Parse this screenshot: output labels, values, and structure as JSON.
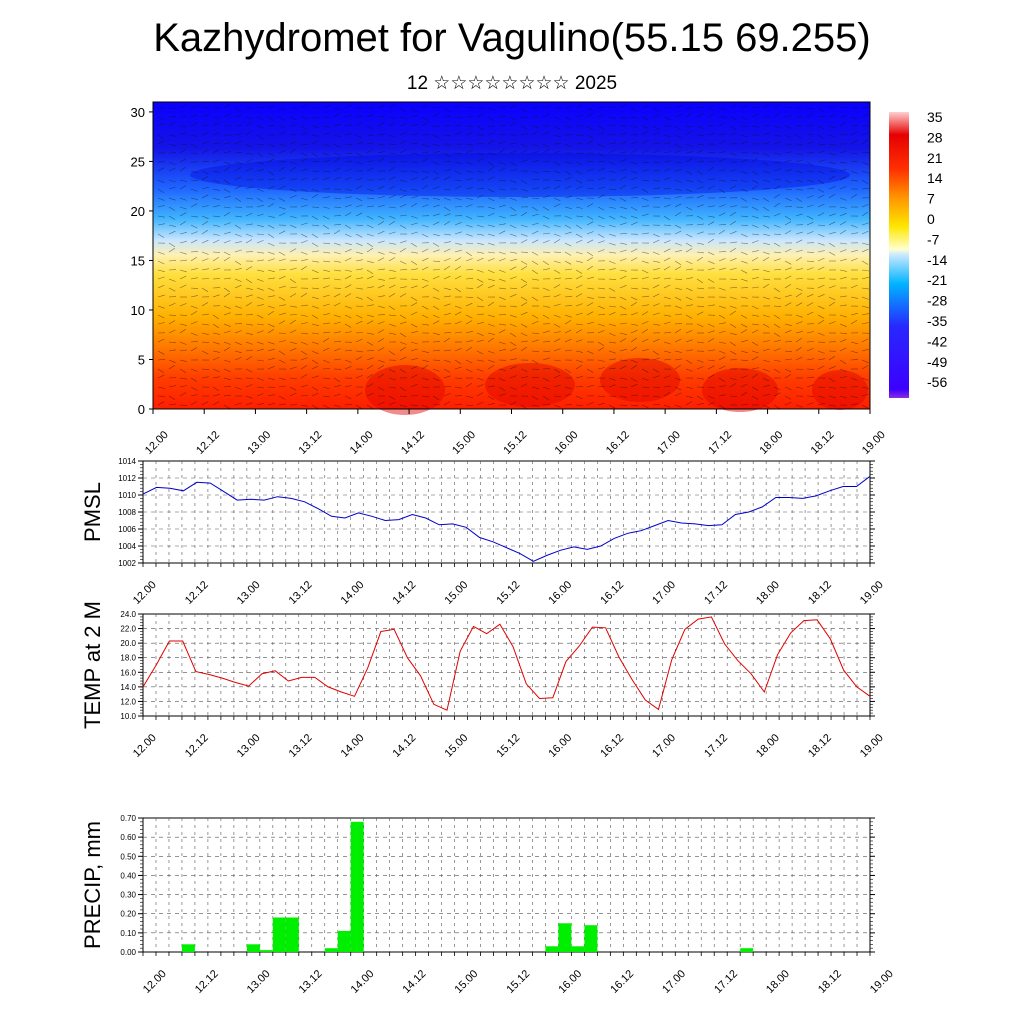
{
  "header": {
    "title": "Kazhydromet for Vagulino(55.15 69.255)",
    "subtitle": "12 ☆☆☆☆☆☆☆☆ 2025"
  },
  "colors": {
    "pmsl_line": "#0000cc",
    "temp_line": "#e00000",
    "precip_bar": "#00ee00"
  },
  "chart_data": [
    {
      "type": "heatmap",
      "title": "",
      "x_tick_labels": [
        "12.00",
        "12.12",
        "13.00",
        "13.12",
        "14.00",
        "14.12",
        "15.00",
        "15.12",
        "16.00",
        "16.12",
        "17.00",
        "17.12",
        "18.00",
        "18.12",
        "19.00"
      ],
      "y_ticks": [
        0,
        5,
        10,
        15,
        20,
        25,
        30
      ],
      "ylim": [
        0,
        31
      ],
      "colorbar_labels": [
        "35",
        "28",
        "21",
        "14",
        "7",
        "0",
        "-7",
        "-14",
        "-21",
        "-28",
        "-35",
        "-42",
        "-49",
        "-56"
      ],
      "colorbar_range": [
        -60,
        38
      ],
      "note_overlay": "wind barbs"
    },
    {
      "type": "line",
      "ylabel": "PMSL",
      "y_ticks": [
        "1002",
        "1004",
        "1006",
        "1008",
        "1010",
        "1012",
        "1014"
      ],
      "ylim": [
        1002,
        1014
      ],
      "x_tick_labels": [
        "12.00",
        "12.12",
        "13.00",
        "13.12",
        "14.00",
        "14.12",
        "15.00",
        "15.12",
        "16.00",
        "16.12",
        "17.00",
        "17.12",
        "18.00",
        "18.12",
        "19.00"
      ],
      "series": [
        {
          "values": [
            1010.1,
            1010.9,
            1010.8,
            1010.5,
            1011.5,
            1011.4,
            1010.4,
            1009.4,
            1009.5,
            1009.4,
            1009.8,
            1009.6,
            1009.2,
            1008.4,
            1007.5,
            1007.3,
            1007.9,
            1007.5,
            1007.0,
            1007.1,
            1007.7,
            1007.3,
            1006.5,
            1006.6,
            1006.2,
            1005.0,
            1004.5,
            1003.8,
            1003.1,
            1002.2,
            1002.9,
            1003.5,
            1003.9,
            1003.6,
            1004.0,
            1004.9,
            1005.5,
            1005.8,
            1006.4,
            1007.0,
            1006.7,
            1006.6,
            1006.4,
            1006.5,
            1007.7,
            1008.0,
            1008.6,
            1009.7,
            1009.7,
            1009.6,
            1009.9,
            1010.5,
            1011.0,
            1011.0,
            1012.2
          ]
        }
      ]
    },
    {
      "type": "line",
      "ylabel": "TEMP at 2 M",
      "y_ticks": [
        "10.0",
        "12.0",
        "14.0",
        "16.0",
        "18.0",
        "20.0",
        "22.0",
        "24.0"
      ],
      "ylim": [
        10,
        24
      ],
      "x_tick_labels": [
        "12.00",
        "12.12",
        "13.00",
        "13.12",
        "14.00",
        "14.12",
        "15.00",
        "15.12",
        "16.00",
        "16.12",
        "17.00",
        "17.12",
        "18.00",
        "18.12",
        "19.00"
      ],
      "series": [
        {
          "values": [
            14.0,
            17.0,
            20.3,
            20.3,
            16.1,
            15.7,
            15.2,
            14.6,
            14.1,
            15.8,
            16.2,
            14.8,
            15.3,
            15.3,
            14.0,
            13.3,
            12.7,
            16.6,
            21.6,
            21.9,
            18.0,
            15.5,
            11.6,
            10.8,
            18.9,
            22.3,
            21.3,
            22.6,
            19.5,
            14.4,
            12.4,
            12.5,
            17.5,
            19.6,
            22.2,
            22.1,
            18.1,
            15.0,
            12.2,
            10.9,
            17.7,
            21.9,
            23.3,
            23.6,
            19.9,
            17.6,
            15.8,
            13.3,
            18.4,
            21.4,
            23.1,
            23.2,
            20.6,
            16.3,
            14.0,
            12.7
          ]
        }
      ]
    },
    {
      "type": "bar",
      "ylabel": "PRECIP, mm",
      "y_ticks": [
        "0.00",
        "0.10",
        "0.20",
        "0.30",
        "0.40",
        "0.50",
        "0.60",
        "0.70"
      ],
      "ylim": [
        0,
        0.7
      ],
      "x_tick_labels": [
        "12.00",
        "12.12",
        "13.00",
        "13.12",
        "14.00",
        "14.12",
        "15.00",
        "15.12",
        "16.00",
        "16.12",
        "17.00",
        "17.12",
        "18.00",
        "18.12",
        "19.00"
      ],
      "bars": [
        {
          "hour": 12,
          "value": 0.04
        },
        {
          "hour": 27,
          "value": 0.04
        },
        {
          "hour": 30,
          "value": 0.01
        },
        {
          "hour": 33,
          "value": 0.18
        },
        {
          "hour": 36,
          "value": 0.18
        },
        {
          "hour": 45,
          "value": 0.02
        },
        {
          "hour": 48,
          "value": 0.11
        },
        {
          "hour": 51,
          "value": 0.68
        },
        {
          "hour": 96,
          "value": 0.03
        },
        {
          "hour": 99,
          "value": 0.15
        },
        {
          "hour": 102,
          "value": 0.03
        },
        {
          "hour": 105,
          "value": 0.14
        },
        {
          "hour": 141,
          "value": 0.02
        }
      ]
    }
  ]
}
